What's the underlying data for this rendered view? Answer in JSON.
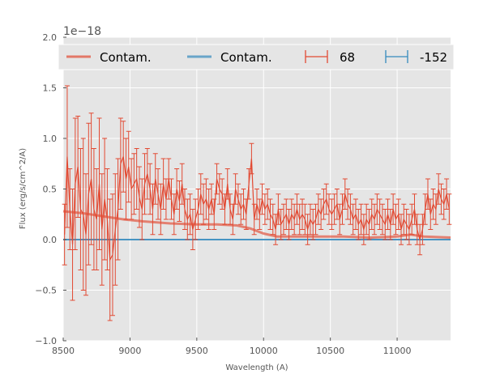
{
  "chart_data": {
    "type": "line",
    "xlabel": "Wavelength (A)",
    "ylabel": "Flux (erg/s/cm^2/A)",
    "offset_text": "1e−18",
    "xlim": [
      8500,
      11400
    ],
    "ylim": [
      -1.0,
      2.0
    ],
    "x_ticks": [
      8500,
      9000,
      9500,
      10000,
      10500,
      11000
    ],
    "y_ticks": [
      -1.0,
      -0.5,
      0.0,
      0.5,
      1.0,
      1.5,
      2.0
    ],
    "y_tick_labels": [
      "−1.0",
      "−0.5",
      "0.0",
      "0.5",
      "1.0",
      "1.5",
      "2.0"
    ],
    "grid": true,
    "legend_position": "top",
    "colors": {
      "red": "#e24a33",
      "blue": "#348abd",
      "plot_bg": "#e5e5e5"
    },
    "series": [
      {
        "name": "Contam.",
        "kind": "line",
        "color": "#e24a33",
        "x": [
          8500,
          8650,
          8800,
          8950,
          9100,
          9300,
          9500,
          9650,
          9800,
          9900,
          10000,
          10100,
          10200,
          10400,
          10600,
          10800,
          11000,
          11100,
          11200,
          11400
        ],
        "y": [
          0.28,
          0.26,
          0.23,
          0.2,
          0.18,
          0.16,
          0.15,
          0.15,
          0.14,
          0.11,
          0.06,
          0.03,
          0.03,
          0.03,
          0.03,
          0.02,
          0.03,
          0.05,
          0.03,
          0.02
        ]
      },
      {
        "name": "Contam.",
        "kind": "line",
        "color": "#348abd",
        "x": [
          8500,
          11400
        ],
        "y": [
          0.0,
          0.0
        ]
      },
      {
        "name": "68",
        "kind": "errorbar",
        "color": "#e24a33",
        "x": [
          8510,
          8530,
          8550,
          8570,
          8590,
          8610,
          8630,
          8650,
          8670,
          8690,
          8710,
          8730,
          8750,
          8770,
          8790,
          8810,
          8830,
          8850,
          8870,
          8890,
          8910,
          8930,
          8950,
          8970,
          8990,
          9010,
          9030,
          9050,
          9070,
          9090,
          9110,
          9130,
          9150,
          9170,
          9190,
          9210,
          9230,
          9250,
          9270,
          9290,
          9310,
          9330,
          9350,
          9370,
          9390,
          9410,
          9430,
          9450,
          9470,
          9490,
          9510,
          9530,
          9550,
          9570,
          9590,
          9610,
          9630,
          9650,
          9670,
          9690,
          9710,
          9730,
          9750,
          9770,
          9790,
          9810,
          9830,
          9850,
          9870,
          9890,
          9910,
          9930,
          9950,
          9970,
          9990,
          10010,
          10030,
          10050,
          10070,
          10090,
          10110,
          10130,
          10150,
          10170,
          10190,
          10210,
          10230,
          10250,
          10270,
          10290,
          10310,
          10330,
          10350,
          10370,
          10390,
          10410,
          10430,
          10450,
          10470,
          10490,
          10510,
          10530,
          10550,
          10570,
          10590,
          10610,
          10630,
          10650,
          10670,
          10690,
          10710,
          10730,
          10750,
          10770,
          10790,
          10810,
          10830,
          10850,
          10870,
          10890,
          10910,
          10930,
          10950,
          10970,
          10990,
          11010,
          11030,
          11050,
          11070,
          11090,
          11110,
          11130,
          11150,
          11170,
          11190,
          11210,
          11230,
          11250,
          11270,
          11290,
          11310,
          11330,
          11350,
          11370,
          11390
        ],
        "y": [
          0.05,
          0.82,
          0.3,
          -0.05,
          0.55,
          0.72,
          0.3,
          0.25,
          0.05,
          0.45,
          0.6,
          0.3,
          0.2,
          0.55,
          0.1,
          0.4,
          0.2,
          -0.2,
          -0.15,
          0.1,
          0.3,
          0.75,
          0.82,
          0.6,
          0.72,
          0.5,
          0.55,
          0.6,
          0.42,
          0.3,
          0.55,
          0.65,
          0.5,
          0.3,
          0.6,
          0.45,
          0.3,
          0.55,
          0.4,
          0.6,
          0.4,
          0.25,
          0.5,
          0.38,
          0.55,
          0.3,
          0.2,
          0.25,
          0.1,
          0.2,
          0.3,
          0.45,
          0.35,
          0.4,
          0.3,
          0.4,
          0.25,
          0.6,
          0.5,
          0.45,
          0.3,
          0.55,
          0.3,
          0.2,
          0.5,
          0.4,
          0.3,
          0.35,
          0.25,
          0.55,
          0.8,
          0.2,
          0.35,
          0.25,
          0.4,
          0.3,
          0.35,
          0.25,
          0.2,
          0.1,
          0.3,
          0.15,
          0.2,
          0.25,
          0.15,
          0.25,
          0.2,
          0.3,
          0.2,
          0.25,
          0.2,
          0.1,
          0.2,
          0.15,
          0.2,
          0.3,
          0.25,
          0.35,
          0.4,
          0.3,
          0.25,
          0.3,
          0.35,
          0.2,
          0.3,
          0.45,
          0.35,
          0.3,
          0.2,
          0.25,
          0.15,
          0.2,
          0.1,
          0.2,
          0.15,
          0.25,
          0.2,
          0.3,
          0.25,
          0.2,
          0.15,
          0.25,
          0.15,
          0.3,
          0.2,
          0.25,
          0.1,
          0.2,
          0.15,
          0.1,
          0.2,
          0.3,
          0.1,
          0.0,
          0.1,
          0.3,
          0.45,
          0.25,
          0.35,
          0.3,
          0.5,
          0.4,
          0.35,
          0.45,
          0.3
        ],
        "err": [
          0.3,
          0.7,
          0.4,
          0.55,
          0.65,
          0.5,
          0.6,
          0.75,
          0.6,
          0.7,
          0.65,
          0.6,
          0.5,
          0.65,
          0.55,
          0.6,
          0.5,
          0.6,
          0.6,
          0.55,
          0.5,
          0.45,
          0.35,
          0.4,
          0.35,
          0.3,
          0.3,
          0.3,
          0.3,
          0.3,
          0.3,
          0.25,
          0.25,
          0.25,
          0.25,
          0.25,
          0.25,
          0.25,
          0.2,
          0.2,
          0.2,
          0.2,
          0.2,
          0.2,
          0.2,
          0.2,
          0.2,
          0.2,
          0.2,
          0.2,
          0.2,
          0.2,
          0.2,
          0.2,
          0.2,
          0.15,
          0.15,
          0.15,
          0.15,
          0.15,
          0.15,
          0.15,
          0.15,
          0.15,
          0.15,
          0.15,
          0.15,
          0.15,
          0.15,
          0.15,
          0.15,
          0.15,
          0.15,
          0.15,
          0.15,
          0.15,
          0.15,
          0.15,
          0.15,
          0.15,
          0.15,
          0.15,
          0.15,
          0.15,
          0.15,
          0.15,
          0.15,
          0.15,
          0.15,
          0.15,
          0.15,
          0.15,
          0.15,
          0.15,
          0.15,
          0.15,
          0.15,
          0.15,
          0.15,
          0.15,
          0.15,
          0.15,
          0.15,
          0.15,
          0.15,
          0.15,
          0.15,
          0.15,
          0.15,
          0.15,
          0.15,
          0.15,
          0.15,
          0.15,
          0.15,
          0.15,
          0.15,
          0.15,
          0.15,
          0.15,
          0.15,
          0.15,
          0.15,
          0.15,
          0.15,
          0.15,
          0.15,
          0.15,
          0.15,
          0.15,
          0.15,
          0.15,
          0.15,
          0.15,
          0.15,
          0.15,
          0.15,
          0.15,
          0.15,
          0.15,
          0.15,
          0.15,
          0.15,
          0.15,
          0.15
        ]
      },
      {
        "name": "-152",
        "kind": "errorbar",
        "color": "#348abd",
        "x": [],
        "y": [],
        "err": []
      }
    ]
  }
}
